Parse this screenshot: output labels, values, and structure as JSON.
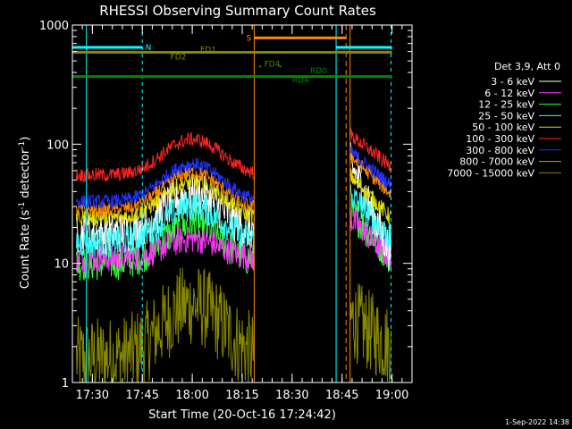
{
  "chart_data": {
    "type": "line",
    "title": "RHESSI Observing Summary Count Rates",
    "xlabel": "Start Time (20-Oct-16 17:24:42)",
    "ylabel_main": "Count Rate (s",
    "ylabel_sup1": "-1",
    "ylabel_mid": " detector",
    "ylabel_sup2": "-1",
    "ylabel_end": ")",
    "yscale": "log",
    "ylim": [
      1,
      1000
    ],
    "xlim_minutes": [
      17.4,
      19.1
    ],
    "xticks": [
      {
        "label": "17:30",
        "min": 17.5
      },
      {
        "label": "17:45",
        "min": 17.75
      },
      {
        "label": "18:00",
        "min": 18.0
      },
      {
        "label": "18:15",
        "min": 18.25
      },
      {
        "label": "18:30",
        "min": 18.5
      },
      {
        "label": "18:45",
        "min": 18.75
      },
      {
        "label": "19:00",
        "min": 19.0
      }
    ],
    "yticks": [
      {
        "label": "1000",
        "v": 1000
      },
      {
        "label": "100",
        "v": 100
      },
      {
        "label": "10",
        "v": 10
      },
      {
        "label": "1",
        "v": 1
      }
    ],
    "legend_header": "Det 3,9, Att 0",
    "series": [
      {
        "name": "3 - 6 keV",
        "color": "#ffffff",
        "base": 18,
        "peak": 38,
        "noise": 0.18,
        "post_start": 70,
        "post_end": 12
      },
      {
        "name": "6 - 12 keV",
        "color": "#ff33ff",
        "base": 11,
        "peak": 16,
        "noise": 0.12,
        "post_start": 24,
        "post_end": 11
      },
      {
        "name": "12 - 25 keV",
        "color": "#33ff33",
        "base": 10,
        "peak": 21,
        "noise": 0.15,
        "post_start": 28,
        "post_end": 11
      },
      {
        "name": "25 - 50 keV",
        "color": "#33ffff",
        "base": 15,
        "peak": 30,
        "noise": 0.13,
        "post_start": 38,
        "post_end": 16
      },
      {
        "name": "50 - 100 keV",
        "color": "#dddd00",
        "base": 24,
        "peak": 48,
        "noise": 0.07,
        "post_start": 55,
        "post_end": 24
      },
      {
        "name": "100 - 300 keV",
        "color": "#ff2222",
        "base": 55,
        "peak": 110,
        "noise": 0.06,
        "post_start": 120,
        "post_end": 65
      },
      {
        "name": "300 - 800 keV",
        "color": "#2233ff",
        "base": 33,
        "peak": 68,
        "noise": 0.06,
        "post_start": 88,
        "post_end": 45
      },
      {
        "name": "800 - 7000 keV",
        "color": "#ff8800",
        "base": 28,
        "peak": 58,
        "noise": 0.06,
        "post_start": 80,
        "post_end": 38
      },
      {
        "name": "7000 - 15000 keV",
        "color": "#888800",
        "base": 1.6,
        "peak": 4.5,
        "noise": 0.35,
        "post_start": 3.5,
        "post_end": 2
      }
    ],
    "markers": [
      {
        "label": "N",
        "color": "#00ffff",
        "y": 650
      },
      {
        "label": "S",
        "color": "#ff8800",
        "y": 780
      },
      {
        "label": "FD1",
        "color": "#888800",
        "y": 590
      },
      {
        "label": "FD2",
        "color": "#888800",
        "y": 580
      },
      {
        "label": "FD4",
        "color": "#448800",
        "y": 450
      },
      {
        "label": "RD0",
        "color": "#008800",
        "y": 370
      },
      {
        "label": "RD4",
        "color": "#008800",
        "y": 360
      }
    ],
    "timestamp": "1-Sep-2022 14:38"
  }
}
